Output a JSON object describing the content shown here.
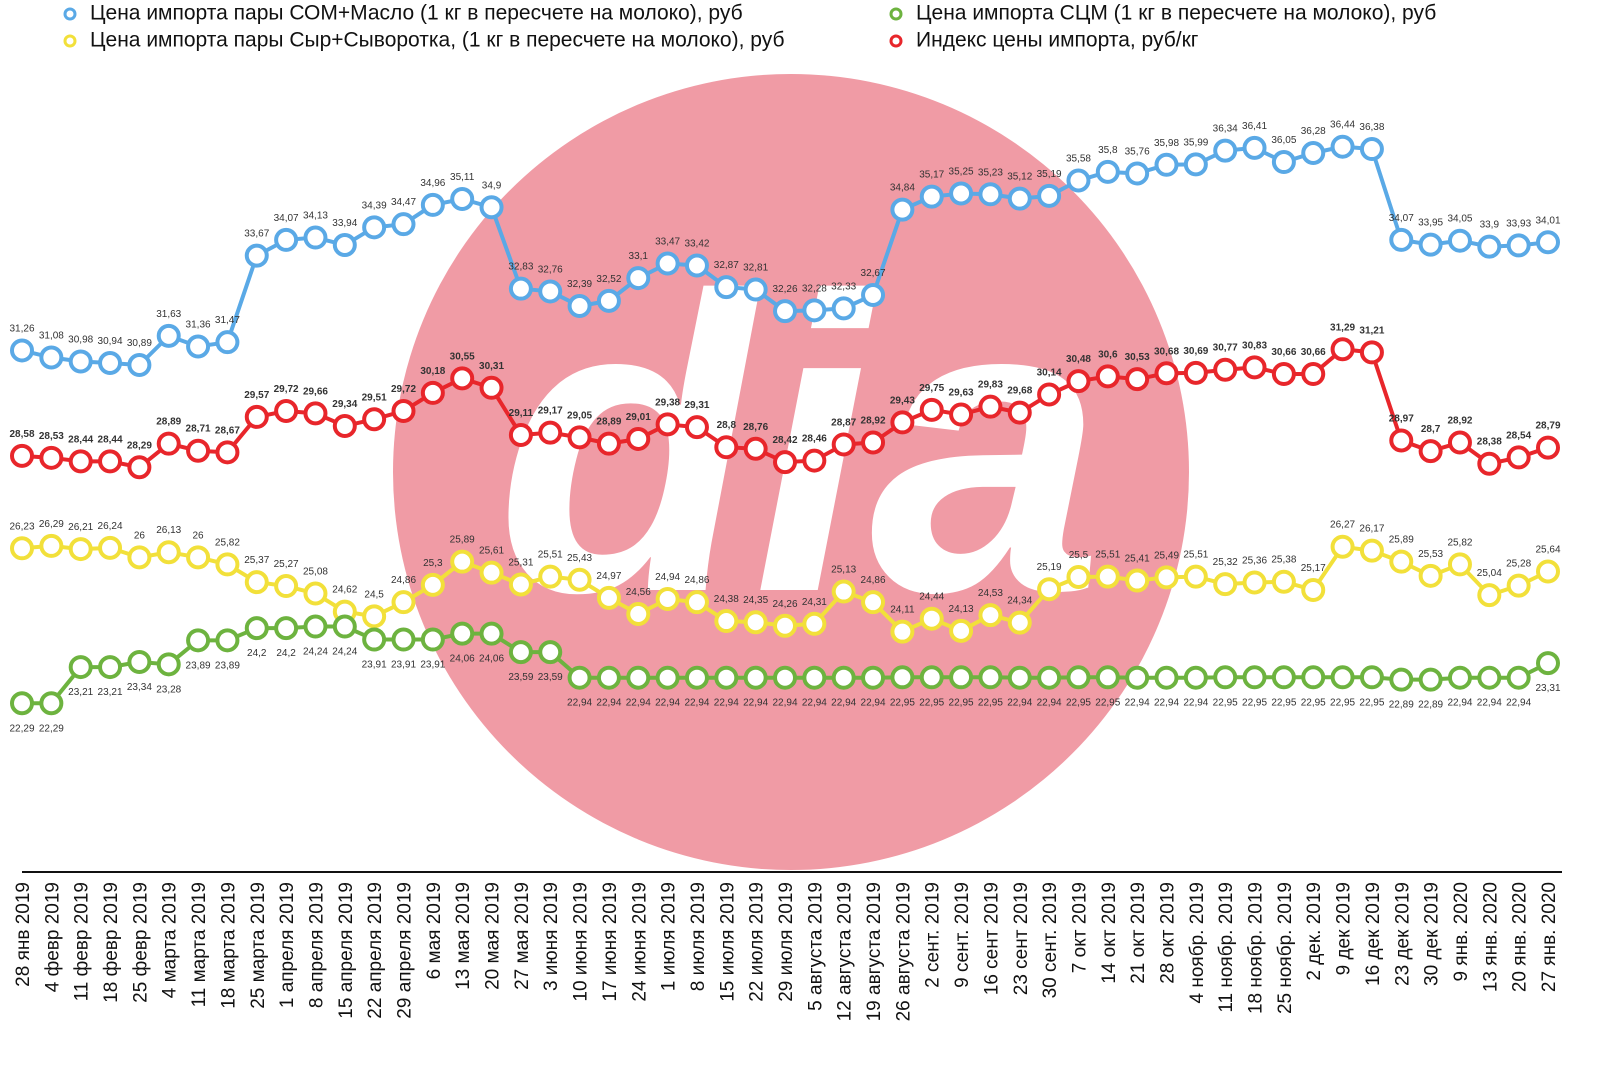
{
  "chart_data": {
    "type": "line",
    "watermark": "dia",
    "categories": [
      "28 янв 2019",
      "4 февр 2019",
      "11 февр 2019",
      "18 февр 2019",
      "25 февр 2019",
      "4 марта 2019",
      "11 марта 2019",
      "18 марта 2019",
      "25 марта 2019",
      "1 апреля 2019",
      "8 апреля 2019",
      "15 апреля 2019",
      "22 апреля 2019",
      "29 апреля 2019",
      "6 мая 2019",
      "13 мая 2019",
      "20 мая 2019",
      "27 мая 2019",
      "3 июня 2019",
      "10 июня 2019",
      "17 июня 2019",
      "24 июня 2019",
      "1 июля 2019",
      "8 июля 2019",
      "15 июля 2019",
      "22 июля 2019",
      "29 июля 2019",
      "5 августа 2019",
      "12 августа 2019",
      "19 августа 2019",
      "26 августа 2019",
      "2 сент. 2019",
      "9 сент. 2019",
      "16 сент 2019",
      "23 сент 2019",
      "30 сент. 2019",
      "7 окт 2019",
      "14 окт 2019",
      "21 окт 2019",
      "28 окт 2019",
      "4 ноябр. 2019",
      "11 ноябр. 2019",
      "18 ноябр. 2019",
      "25 ноябр. 2019",
      "2 дек. 2019",
      "9 дек 2019",
      "16 дек 2019",
      "23 дек 2019",
      "30 дек 2019",
      "9 янв. 2020",
      "13 янв. 2020",
      "20 янв. 2020",
      "27 янв. 2020"
    ],
    "ylim": [
      18,
      39
    ],
    "series": [
      {
        "name": "Цена импорта пары СОМ+Масло (1 кг в пересчете на молоко), руб",
        "color": "#5aa9e6",
        "values": [
          31.26,
          31.08,
          30.98,
          30.94,
          30.89,
          31.63,
          31.36,
          31.47,
          33.67,
          34.07,
          34.13,
          33.94,
          34.39,
          34.47,
          34.96,
          35.11,
          34.9,
          32.83,
          32.76,
          32.39,
          32.52,
          33.1,
          33.47,
          33.42,
          32.87,
          32.81,
          32.26,
          32.28,
          32.33,
          32.67,
          34.84,
          35.17,
          35.25,
          35.23,
          35.12,
          35.19,
          35.58,
          35.8,
          35.76,
          35.98,
          35.99,
          36.34,
          36.41,
          36.05,
          36.28,
          36.44,
          36.38,
          34.07,
          33.95,
          34.05,
          33.9,
          33.93,
          34.01
        ],
        "value_labels": [
          "31,26",
          "31,08",
          "30,98",
          "30,94",
          "30,89",
          "31,63",
          "31,36",
          "31,47",
          "33,67",
          "34,07",
          "34,13",
          "33,94",
          "34,39",
          "34,47",
          "34,96",
          "35,11",
          "34,9",
          "32,83",
          "32,76",
          "32,39",
          "32,52",
          "33,1",
          "33,47",
          "33,42",
          "32,87",
          "32,81",
          "32,26",
          "32,28",
          "32,33",
          "32,67",
          "34,84",
          "35,17",
          "35,25",
          "35,23",
          "35,12",
          "35,19",
          "35,58",
          "35,8",
          "35,76",
          "35,98",
          "35,99",
          "36,34",
          "36,41",
          "36,05",
          "36,28",
          "36,44",
          "36,38",
          "34,07",
          "33,95",
          "34,05",
          "33,9",
          "33,93",
          "34,01"
        ]
      },
      {
        "name": "Цена импорта пары Сыр+Сыворотка, (1 кг в пересчете на молоко), руб",
        "color": "#f2e03a",
        "values": [
          26.23,
          26.29,
          26.21,
          26.24,
          26,
          26.13,
          26,
          25.82,
          25.37,
          25.27,
          25.08,
          24.62,
          24.5,
          24.86,
          25.3,
          25.89,
          25.61,
          25.31,
          25.51,
          25.43,
          24.97,
          24.56,
          24.94,
          24.86,
          24.38,
          24.35,
          24.26,
          24.31,
          25.13,
          24.86,
          24.11,
          24.44,
          24.13,
          24.53,
          24.34,
          25.19,
          25.5,
          25.51,
          25.41,
          25.49,
          25.51,
          25.32,
          25.36,
          25.38,
          25.17,
          26.27,
          26.17,
          25.89,
          25.53,
          25.82,
          25.04,
          25.28,
          25.64
        ],
        "value_labels": [
          "26,23",
          "26,29",
          "26,21",
          "26,24",
          "26",
          "26,13",
          "26",
          "25,82",
          "25,37",
          "25,27",
          "25,08",
          "24,62",
          "24,5",
          "24,86",
          "25,3",
          "25,89",
          "25,61",
          "25,31",
          "25,51",
          "25,43",
          "24,97",
          "24,56",
          "24,94",
          "24,86",
          "24,38",
          "24,35",
          "24,26",
          "24,31",
          "25,13",
          "24,86",
          "24,11",
          "24,44",
          "24,13",
          "24,53",
          "24,34",
          "25,19",
          "25,5",
          "25,51",
          "25,41",
          "25,49",
          "25,51",
          "25,32",
          "25,36",
          "25,38",
          "25,17",
          "26,27",
          "26,17",
          "25,89",
          "25,53",
          "25,82",
          "25,04",
          "25,28",
          "25,64"
        ]
      },
      {
        "name": "Цена импорта СЦМ (1 кг в пересчете на молоко), руб",
        "color": "#6db33f",
        "values": [
          22.29,
          22.29,
          23.21,
          23.21,
          23.34,
          23.28,
          23.89,
          23.89,
          24.2,
          24.2,
          24.24,
          24.24,
          23.91,
          23.91,
          23.91,
          24.06,
          24.06,
          23.59,
          23.59,
          22.94,
          22.94,
          22.94,
          22.94,
          22.94,
          22.94,
          22.94,
          22.94,
          22.94,
          22.94,
          22.94,
          22.95,
          22.95,
          22.95,
          22.95,
          22.94,
          22.94,
          22.95,
          22.95,
          22.94,
          22.94,
          22.94,
          22.95,
          22.95,
          22.95,
          22.95,
          22.95,
          22.95,
          22.89,
          22.89,
          22.94,
          22.94,
          22.94,
          23.31
        ],
        "value_labels": [
          "22,29",
          "22,29",
          "23,21",
          "23,21",
          "23,34",
          "23,28",
          "23,89",
          "23,89",
          "24,2",
          "24,2",
          "24,24",
          "24,24",
          "23,91",
          "23,91",
          "23,91",
          "24,06",
          "24,06",
          "23,59",
          "23,59",
          "22,94",
          "22,94",
          "22,94",
          "22,94",
          "22,94",
          "22,94",
          "22,94",
          "22,94",
          "22,94",
          "22,94",
          "22,94",
          "22,95",
          "22,95",
          "22,95",
          "22,95",
          "22,94",
          "22,94",
          "22,95",
          "22,95",
          "22,94",
          "22,94",
          "22,94",
          "22,95",
          "22,95",
          "22,95",
          "22,95",
          "22,95",
          "22,95",
          "22,89",
          "22,89",
          "22,94",
          "22,94",
          "22,94",
          "23,31"
        ]
      },
      {
        "name": "Индекс цены импорта, руб/кг",
        "color": "#e8262b",
        "values": [
          28.58,
          28.53,
          28.44,
          28.44,
          28.29,
          28.89,
          28.71,
          28.67,
          29.57,
          29.72,
          29.66,
          29.34,
          29.51,
          29.72,
          30.18,
          30.55,
          30.31,
          29.11,
          29.17,
          29.05,
          28.89,
          29.01,
          29.38,
          29.31,
          28.8,
          28.76,
          28.42,
          28.46,
          28.87,
          28.92,
          29.43,
          29.75,
          29.63,
          29.83,
          29.68,
          30.14,
          30.48,
          30.6,
          30.53,
          30.68,
          30.69,
          30.77,
          30.83,
          30.66,
          30.66,
          31.29,
          31.21,
          28.97,
          28.7,
          28.92,
          28.38,
          28.54,
          28.79
        ],
        "value_labels": [
          "28,58",
          "28,53",
          "28,44",
          "28,44",
          "28,29",
          "28,89",
          "28,71",
          "28,67",
          "29,57",
          "29,72",
          "29,66",
          "29,34",
          "29,51",
          "29,72",
          "30,18",
          "30,55",
          "30,31",
          "29,11",
          "29,17",
          "29,05",
          "28,89",
          "29,01",
          "29,38",
          "29,31",
          "28,8",
          "28,76",
          "28,42",
          "28,46",
          "28,87",
          "28,92",
          "29,43",
          "29,75",
          "29,63",
          "29,83",
          "29,68",
          "30,14",
          "30,48",
          "30,6",
          "30,53",
          "30,68",
          "30,69",
          "30,77",
          "30,83",
          "30,66",
          "30,66",
          "31,29",
          "31,21",
          "28,97",
          "28,7",
          "28,92",
          "28,38",
          "28,54",
          "28,79"
        ]
      }
    ]
  }
}
